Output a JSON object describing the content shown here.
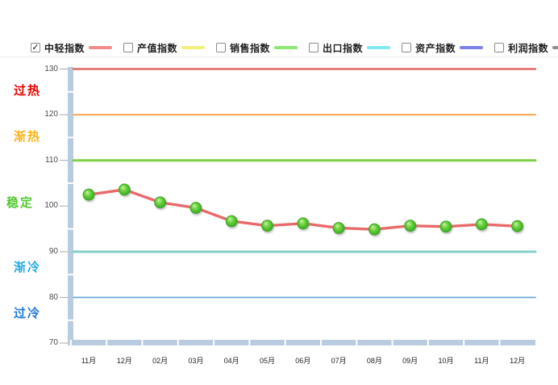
{
  "legend": {
    "items": [
      {
        "label": "中轻指数",
        "color": "#f28c8c",
        "checked": true
      },
      {
        "label": "产值指数",
        "color": "#f3ef7d",
        "checked": false
      },
      {
        "label": "销售指数",
        "color": "#8ae873",
        "checked": false
      },
      {
        "label": "出口指数",
        "color": "#7fe9ef",
        "checked": false
      },
      {
        "label": "资产指数",
        "color": "#7a80e6",
        "checked": false
      },
      {
        "label": "利润指数",
        "color": "#8f8f8f",
        "checked": false
      }
    ],
    "check_glyph": "✓"
  },
  "chart_data": {
    "type": "line",
    "title": "",
    "categories": [
      "11月",
      "12月",
      "02月",
      "03月",
      "04月",
      "05月",
      "06月",
      "07月",
      "08月",
      "09月",
      "10月",
      "11月",
      "12月"
    ],
    "series": [
      {
        "name": "中轻指数",
        "line_color": "#e96a6a",
        "marker_color": "#4db52e",
        "values": [
          102.5,
          103.6,
          100.8,
          99.6,
          96.7,
          95.7,
          96.2,
          95.2,
          94.9,
          95.7,
          95.5,
          96.0,
          95.6
        ]
      }
    ],
    "ylim": [
      70,
      130
    ],
    "yticks": [
      "130",
      "120",
      "110",
      "100",
      "90",
      "80",
      "70"
    ],
    "ytick_values": [
      130,
      120,
      110,
      100,
      90,
      80,
      70
    ],
    "grid": false,
    "legend_position": "top",
    "threshold_lines": [
      {
        "value": 130,
        "color": "#e06666",
        "width": 2.4
      },
      {
        "value": 120,
        "color": "#ffa64d",
        "width": 2
      },
      {
        "value": 110,
        "color": "#7dd044",
        "width": 3
      },
      {
        "value": 90,
        "color": "#82cfc4",
        "width": 3
      },
      {
        "value": 80,
        "color": "#6fa8dc",
        "width": 1.8
      }
    ],
    "zone_labels": [
      {
        "label": "过热",
        "color": "#e60000",
        "band": "120-130"
      },
      {
        "label": "渐热",
        "color": "#fbb418",
        "band": "110-120"
      },
      {
        "label": "稳定",
        "color": "#54c832",
        "band": "90-110"
      },
      {
        "label": "渐冷",
        "color": "#29abe2",
        "band": "80-90"
      },
      {
        "label": "过冷",
        "color": "#1e78d7",
        "band": "70-80"
      }
    ],
    "axis_bar_color": "#b9cbdf"
  }
}
